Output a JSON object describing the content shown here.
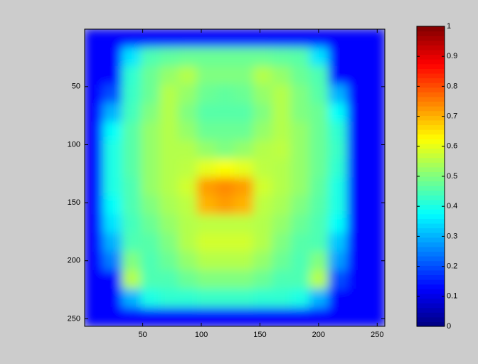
{
  "chart_data": {
    "type": "heatmap",
    "colormap": "jet",
    "xlim": [
      0.5,
      256.5
    ],
    "ylim": [
      0.5,
      256.5
    ],
    "y_reversed": true,
    "xticks": [
      50,
      100,
      150,
      200,
      250
    ],
    "yticks": [
      50,
      100,
      150,
      200,
      250
    ],
    "clim": [
      0,
      1
    ],
    "cticks": [
      0,
      0.1,
      0.2,
      0.3,
      0.4,
      0.5,
      0.6,
      0.7,
      0.8,
      0.9,
      1
    ],
    "z": [
      [
        0.13,
        0.13,
        0.13,
        0.13,
        0.13,
        0.13,
        0.13,
        0.13,
        0.13,
        0.13,
        0.13,
        0.13,
        0.13,
        0.13,
        0.13,
        0.13
      ],
      [
        0.13,
        0.13,
        0.35,
        0.45,
        0.47,
        0.48,
        0.48,
        0.48,
        0.48,
        0.48,
        0.47,
        0.46,
        0.35,
        0.13,
        0.13,
        0.13
      ],
      [
        0.13,
        0.13,
        0.42,
        0.48,
        0.52,
        0.55,
        0.5,
        0.5,
        0.5,
        0.55,
        0.52,
        0.48,
        0.45,
        0.13,
        0.13,
        0.13
      ],
      [
        0.13,
        0.2,
        0.43,
        0.48,
        0.55,
        0.52,
        0.48,
        0.47,
        0.48,
        0.52,
        0.55,
        0.5,
        0.46,
        0.3,
        0.13,
        0.13
      ],
      [
        0.13,
        0.3,
        0.44,
        0.5,
        0.55,
        0.5,
        0.46,
        0.46,
        0.46,
        0.5,
        0.55,
        0.5,
        0.48,
        0.38,
        0.13,
        0.13
      ],
      [
        0.13,
        0.38,
        0.46,
        0.52,
        0.55,
        0.52,
        0.48,
        0.48,
        0.48,
        0.52,
        0.55,
        0.52,
        0.48,
        0.42,
        0.13,
        0.13
      ],
      [
        0.13,
        0.4,
        0.46,
        0.52,
        0.55,
        0.55,
        0.52,
        0.5,
        0.52,
        0.55,
        0.56,
        0.52,
        0.48,
        0.43,
        0.13,
        0.13
      ],
      [
        0.13,
        0.4,
        0.46,
        0.52,
        0.55,
        0.56,
        0.6,
        0.62,
        0.6,
        0.56,
        0.55,
        0.52,
        0.48,
        0.42,
        0.13,
        0.13
      ],
      [
        0.13,
        0.4,
        0.45,
        0.52,
        0.55,
        0.58,
        0.72,
        0.74,
        0.72,
        0.58,
        0.55,
        0.52,
        0.47,
        0.4,
        0.13,
        0.13
      ],
      [
        0.13,
        0.38,
        0.45,
        0.5,
        0.54,
        0.56,
        0.7,
        0.72,
        0.7,
        0.56,
        0.54,
        0.5,
        0.46,
        0.4,
        0.13,
        0.13
      ],
      [
        0.13,
        0.35,
        0.44,
        0.48,
        0.52,
        0.55,
        0.56,
        0.56,
        0.56,
        0.55,
        0.52,
        0.48,
        0.45,
        0.38,
        0.13,
        0.13
      ],
      [
        0.13,
        0.3,
        0.45,
        0.46,
        0.5,
        0.55,
        0.58,
        0.58,
        0.58,
        0.55,
        0.5,
        0.46,
        0.45,
        0.32,
        0.13,
        0.13
      ],
      [
        0.13,
        0.25,
        0.5,
        0.45,
        0.48,
        0.52,
        0.55,
        0.55,
        0.55,
        0.52,
        0.48,
        0.45,
        0.5,
        0.28,
        0.13,
        0.13
      ],
      [
        0.13,
        0.13,
        0.55,
        0.45,
        0.45,
        0.48,
        0.5,
        0.5,
        0.5,
        0.48,
        0.45,
        0.45,
        0.55,
        0.2,
        0.13,
        0.13
      ],
      [
        0.13,
        0.13,
        0.3,
        0.4,
        0.42,
        0.42,
        0.43,
        0.43,
        0.43,
        0.42,
        0.42,
        0.4,
        0.3,
        0.13,
        0.13,
        0.13
      ],
      [
        0.13,
        0.13,
        0.13,
        0.13,
        0.13,
        0.13,
        0.13,
        0.13,
        0.13,
        0.13,
        0.13,
        0.13,
        0.13,
        0.13,
        0.13,
        0.13
      ]
    ]
  }
}
